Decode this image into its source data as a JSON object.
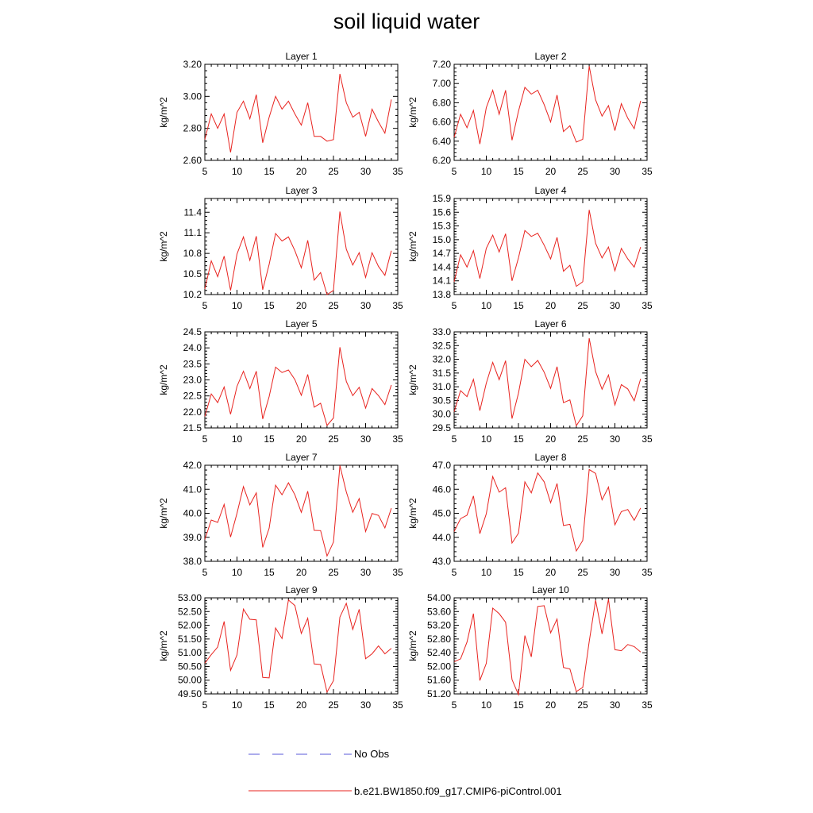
{
  "title": "soil liquid water",
  "legend": {
    "obs_label": "No Obs",
    "obs_color": "#5a5ad8",
    "model_label": "b.e21.BW1850.f09_g17.CMIP6-piControl.001",
    "model_color": "#e8231f"
  },
  "chart_data": [
    {
      "type": "line",
      "title": "Layer 1",
      "ylabel": "kg/m^2",
      "xlim": [
        5,
        35
      ],
      "xticks": [
        5,
        10,
        15,
        20,
        25,
        30,
        35
      ],
      "ylim": [
        2.6,
        3.2
      ],
      "yticks": [
        "2.60",
        "2.80",
        "3.00",
        "3.20"
      ],
      "x": [
        5,
        6,
        7,
        8,
        9,
        10,
        11,
        12,
        13,
        14,
        15,
        16,
        17,
        18,
        19,
        20,
        21,
        22,
        23,
        24,
        25,
        26,
        27,
        28,
        29,
        30,
        31,
        32,
        33,
        34
      ],
      "series": [
        {
          "values": [
            2.73,
            2.89,
            2.8,
            2.89,
            2.65,
            2.9,
            2.97,
            2.86,
            3.01,
            2.71,
            2.87,
            3.0,
            2.92,
            2.97,
            2.89,
            2.82,
            2.96,
            2.75,
            2.75,
            2.72,
            2.73,
            3.14,
            2.96,
            2.87,
            2.9,
            2.75,
            2.92,
            2.84,
            2.77,
            2.98
          ]
        }
      ]
    },
    {
      "type": "line",
      "title": "Layer 2",
      "ylabel": "kg/m^2",
      "xlim": [
        5,
        35
      ],
      "xticks": [
        5,
        10,
        15,
        20,
        25,
        30,
        35
      ],
      "ylim": [
        6.2,
        7.2
      ],
      "yticks": [
        "6.20",
        "6.40",
        "6.60",
        "6.80",
        "7.00",
        "7.20"
      ],
      "x": [
        5,
        6,
        7,
        8,
        9,
        10,
        11,
        12,
        13,
        14,
        15,
        16,
        17,
        18,
        19,
        20,
        21,
        22,
        23,
        24,
        25,
        26,
        27,
        28,
        29,
        30,
        31,
        32,
        33,
        34
      ],
      "series": [
        {
          "values": [
            6.44,
            6.68,
            6.54,
            6.72,
            6.37,
            6.75,
            6.93,
            6.68,
            6.93,
            6.41,
            6.71,
            6.96,
            6.89,
            6.93,
            6.78,
            6.6,
            6.88,
            6.5,
            6.56,
            6.39,
            6.42,
            7.18,
            6.83,
            6.66,
            6.77,
            6.51,
            6.79,
            6.64,
            6.53,
            6.82
          ]
        }
      ]
    },
    {
      "type": "line",
      "title": "Layer 3",
      "ylabel": "kg/m^2",
      "xlim": [
        5,
        35
      ],
      "xticks": [
        5,
        10,
        15,
        20,
        25,
        30,
        35
      ],
      "ylim": [
        10.2,
        11.6
      ],
      "yticks": [
        "10.2",
        "10.5",
        "10.8",
        "11.1",
        "11.4"
      ],
      "x": [
        5,
        6,
        7,
        8,
        9,
        10,
        11,
        12,
        13,
        14,
        15,
        16,
        17,
        18,
        19,
        20,
        21,
        22,
        23,
        24,
        25,
        26,
        27,
        28,
        29,
        30,
        31,
        32,
        33,
        34
      ],
      "series": [
        {
          "values": [
            10.28,
            10.69,
            10.46,
            10.76,
            10.26,
            10.79,
            11.04,
            10.7,
            11.05,
            10.27,
            10.64,
            11.09,
            10.98,
            11.04,
            10.84,
            10.59,
            10.99,
            10.41,
            10.52,
            10.2,
            10.26,
            11.41,
            10.86,
            10.63,
            10.81,
            10.45,
            10.81,
            10.61,
            10.48,
            10.84
          ]
        }
      ]
    },
    {
      "type": "line",
      "title": "Layer 4",
      "ylabel": "kg/m^2",
      "xlim": [
        5,
        35
      ],
      "xticks": [
        5,
        10,
        15,
        20,
        25,
        30,
        35
      ],
      "ylim": [
        13.8,
        15.9
      ],
      "yticks": [
        "13.8",
        "14.1",
        "14.4",
        "14.7",
        "15.0",
        "15.3",
        "15.6",
        "15.9"
      ],
      "x": [
        5,
        6,
        7,
        8,
        9,
        10,
        11,
        12,
        13,
        14,
        15,
        16,
        17,
        18,
        19,
        20,
        21,
        22,
        23,
        24,
        25,
        26,
        27,
        28,
        29,
        30,
        31,
        32,
        33,
        34
      ],
      "series": [
        {
          "values": [
            14.08,
            14.67,
            14.4,
            14.76,
            14.15,
            14.81,
            15.1,
            14.73,
            15.13,
            14.1,
            14.6,
            15.2,
            15.07,
            15.14,
            14.88,
            14.58,
            15.05,
            14.31,
            14.44,
            13.98,
            14.08,
            15.65,
            14.92,
            14.6,
            14.84,
            14.32,
            14.81,
            14.58,
            14.4,
            14.84
          ]
        }
      ]
    },
    {
      "type": "line",
      "title": "Layer 5",
      "ylabel": "kg/m^2",
      "xlim": [
        5,
        35
      ],
      "xticks": [
        5,
        10,
        15,
        20,
        25,
        30,
        35
      ],
      "ylim": [
        21.5,
        24.5
      ],
      "yticks": [
        "21.5",
        "22.0",
        "22.5",
        "23.0",
        "23.5",
        "24.0",
        "24.5"
      ],
      "x": [
        5,
        6,
        7,
        8,
        9,
        10,
        11,
        12,
        13,
        14,
        15,
        16,
        17,
        18,
        19,
        20,
        21,
        22,
        23,
        24,
        25,
        26,
        27,
        28,
        29,
        30,
        31,
        32,
        33,
        34
      ],
      "series": [
        {
          "values": [
            21.86,
            22.56,
            22.29,
            22.78,
            21.93,
            22.8,
            23.27,
            22.73,
            23.27,
            21.78,
            22.48,
            23.4,
            23.23,
            23.31,
            23.01,
            22.52,
            23.17,
            22.15,
            22.27,
            21.58,
            21.81,
            24.02,
            22.95,
            22.51,
            22.77,
            22.12,
            22.73,
            22.51,
            22.23,
            22.84
          ]
        }
      ]
    },
    {
      "type": "line",
      "title": "Layer 6",
      "ylabel": "kg/m^2",
      "xlim": [
        5,
        35
      ],
      "xticks": [
        5,
        10,
        15,
        20,
        25,
        30,
        35
      ],
      "ylim": [
        29.5,
        33.0
      ],
      "yticks": [
        "29.5",
        "30.0",
        "30.5",
        "31.0",
        "31.5",
        "32.0",
        "32.5",
        "33.0"
      ],
      "x": [
        5,
        6,
        7,
        8,
        9,
        10,
        11,
        12,
        13,
        14,
        15,
        16,
        17,
        18,
        19,
        20,
        21,
        22,
        23,
        24,
        25,
        26,
        27,
        28,
        29,
        30,
        31,
        32,
        33,
        34
      ],
      "series": [
        {
          "values": [
            30.09,
            30.86,
            30.64,
            31.27,
            30.13,
            31.13,
            31.89,
            31.26,
            31.95,
            29.84,
            30.76,
            32.0,
            31.73,
            31.96,
            31.53,
            30.94,
            31.73,
            30.42,
            30.52,
            29.58,
            29.94,
            32.77,
            31.55,
            30.91,
            31.43,
            30.34,
            31.08,
            30.92,
            30.49,
            31.29
          ]
        }
      ]
    },
    {
      "type": "line",
      "title": "Layer 7",
      "ylabel": "kg/m^2",
      "xlim": [
        5,
        35
      ],
      "xticks": [
        5,
        10,
        15,
        20,
        25,
        30,
        35
      ],
      "ylim": [
        38.0,
        42.0
      ],
      "yticks": [
        "38.0",
        "39.0",
        "40.0",
        "41.0",
        "42.0"
      ],
      "x": [
        5,
        6,
        7,
        8,
        9,
        10,
        11,
        12,
        13,
        14,
        15,
        16,
        17,
        18,
        19,
        20,
        21,
        22,
        23,
        24,
        25,
        26,
        27,
        28,
        29,
        30,
        31,
        32,
        33,
        34
      ],
      "series": [
        {
          "values": [
            38.91,
            39.72,
            39.62,
            40.37,
            39.01,
            40.0,
            41.11,
            40.35,
            40.85,
            38.58,
            39.38,
            41.17,
            40.77,
            41.27,
            40.77,
            40.04,
            40.92,
            39.29,
            39.28,
            38.22,
            38.8,
            41.99,
            40.89,
            40.04,
            40.61,
            39.24,
            39.99,
            39.91,
            39.39,
            40.21
          ]
        }
      ]
    },
    {
      "type": "line",
      "title": "Layer 8",
      "ylabel": "kg/m^2",
      "xlim": [
        5,
        35
      ],
      "xticks": [
        5,
        10,
        15,
        20,
        25,
        30,
        35
      ],
      "ylim": [
        43.0,
        47.0
      ],
      "yticks": [
        "43.0",
        "44.0",
        "45.0",
        "46.0",
        "47.0"
      ],
      "x": [
        5,
        6,
        7,
        8,
        9,
        10,
        11,
        12,
        13,
        14,
        15,
        16,
        17,
        18,
        19,
        20,
        21,
        22,
        23,
        24,
        25,
        26,
        27,
        28,
        29,
        30,
        31,
        32,
        33,
        34
      ],
      "series": [
        {
          "values": [
            44.24,
            44.78,
            44.92,
            45.72,
            44.15,
            44.98,
            46.53,
            45.88,
            46.06,
            43.76,
            44.17,
            46.31,
            45.85,
            46.68,
            46.31,
            45.44,
            46.24,
            44.49,
            44.54,
            43.43,
            43.87,
            46.82,
            46.66,
            45.56,
            46.09,
            44.52,
            45.07,
            45.16,
            44.71,
            45.22
          ]
        }
      ]
    },
    {
      "type": "line",
      "title": "Layer 9",
      "ylabel": "kg/m^2",
      "xlim": [
        5,
        35
      ],
      "xticks": [
        5,
        10,
        15,
        20,
        25,
        30,
        35
      ],
      "ylim": [
        49.5,
        53.0
      ],
      "yticks": [
        "49.50",
        "50.00",
        "50.50",
        "51.00",
        "51.50",
        "52.00",
        "52.50",
        "53.00"
      ],
      "x": [
        5,
        6,
        7,
        8,
        9,
        10,
        11,
        12,
        13,
        14,
        15,
        16,
        17,
        18,
        19,
        20,
        21,
        22,
        23,
        24,
        25,
        26,
        27,
        28,
        29,
        30,
        31,
        32,
        33,
        34
      ],
      "series": [
        {
          "values": [
            50.62,
            50.93,
            51.21,
            52.14,
            50.36,
            50.92,
            52.59,
            52.22,
            52.2,
            50.1,
            50.08,
            51.9,
            51.52,
            52.92,
            52.72,
            51.7,
            52.26,
            50.59,
            50.57,
            49.57,
            49.98,
            52.3,
            52.8,
            51.85,
            52.58,
            50.78,
            50.96,
            51.25,
            50.96,
            51.16
          ]
        }
      ]
    },
    {
      "type": "line",
      "title": "Layer 10",
      "ylabel": "kg/m^2",
      "xlim": [
        5,
        35
      ],
      "xticks": [
        5,
        10,
        15,
        20,
        25,
        30,
        35
      ],
      "ylim": [
        51.2,
        54.0
      ],
      "yticks": [
        "51.20",
        "51.60",
        "52.00",
        "52.40",
        "52.80",
        "53.20",
        "53.60",
        "54.00"
      ],
      "x": [
        5,
        6,
        7,
        8,
        9,
        10,
        11,
        12,
        13,
        14,
        15,
        16,
        17,
        18,
        19,
        20,
        21,
        22,
        23,
        24,
        25,
        26,
        27,
        28,
        29,
        30,
        31,
        32,
        33,
        34
      ],
      "series": [
        {
          "values": [
            52.14,
            52.22,
            52.71,
            53.54,
            51.59,
            52.09,
            53.7,
            53.54,
            53.29,
            51.62,
            51.18,
            52.9,
            52.28,
            53.75,
            53.77,
            52.98,
            53.38,
            51.97,
            51.93,
            51.27,
            51.39,
            52.72,
            53.93,
            52.95,
            53.96,
            52.49,
            52.46,
            52.64,
            52.58,
            52.42
          ]
        }
      ]
    }
  ]
}
